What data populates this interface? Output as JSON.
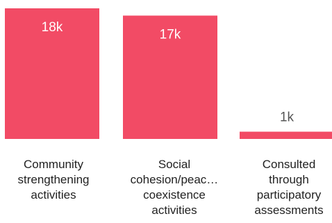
{
  "chart_data": {
    "type": "bar",
    "categories": [
      "Community strengthening activities",
      "Social cohesion/peac… coexistence activities",
      "Consulted through participatory assessments"
    ],
    "category_lines": [
      [
        "Community",
        "strengthening",
        "activities"
      ],
      [
        "Social",
        "cohesion/peac…",
        "coexistence",
        "activities"
      ],
      [
        "Consulted",
        "through",
        "participatory",
        "assessments"
      ]
    ],
    "values": [
      18000,
      17000,
      1000
    ],
    "value_labels": [
      "18k",
      "17k",
      "1k"
    ],
    "ylim": [
      0,
      18000
    ],
    "colors": {
      "bar": "#f24b65",
      "label_inside": "#ffffff",
      "label_outside": "#555555",
      "category_text": "#222222"
    },
    "grid": false,
    "legend": "none"
  }
}
